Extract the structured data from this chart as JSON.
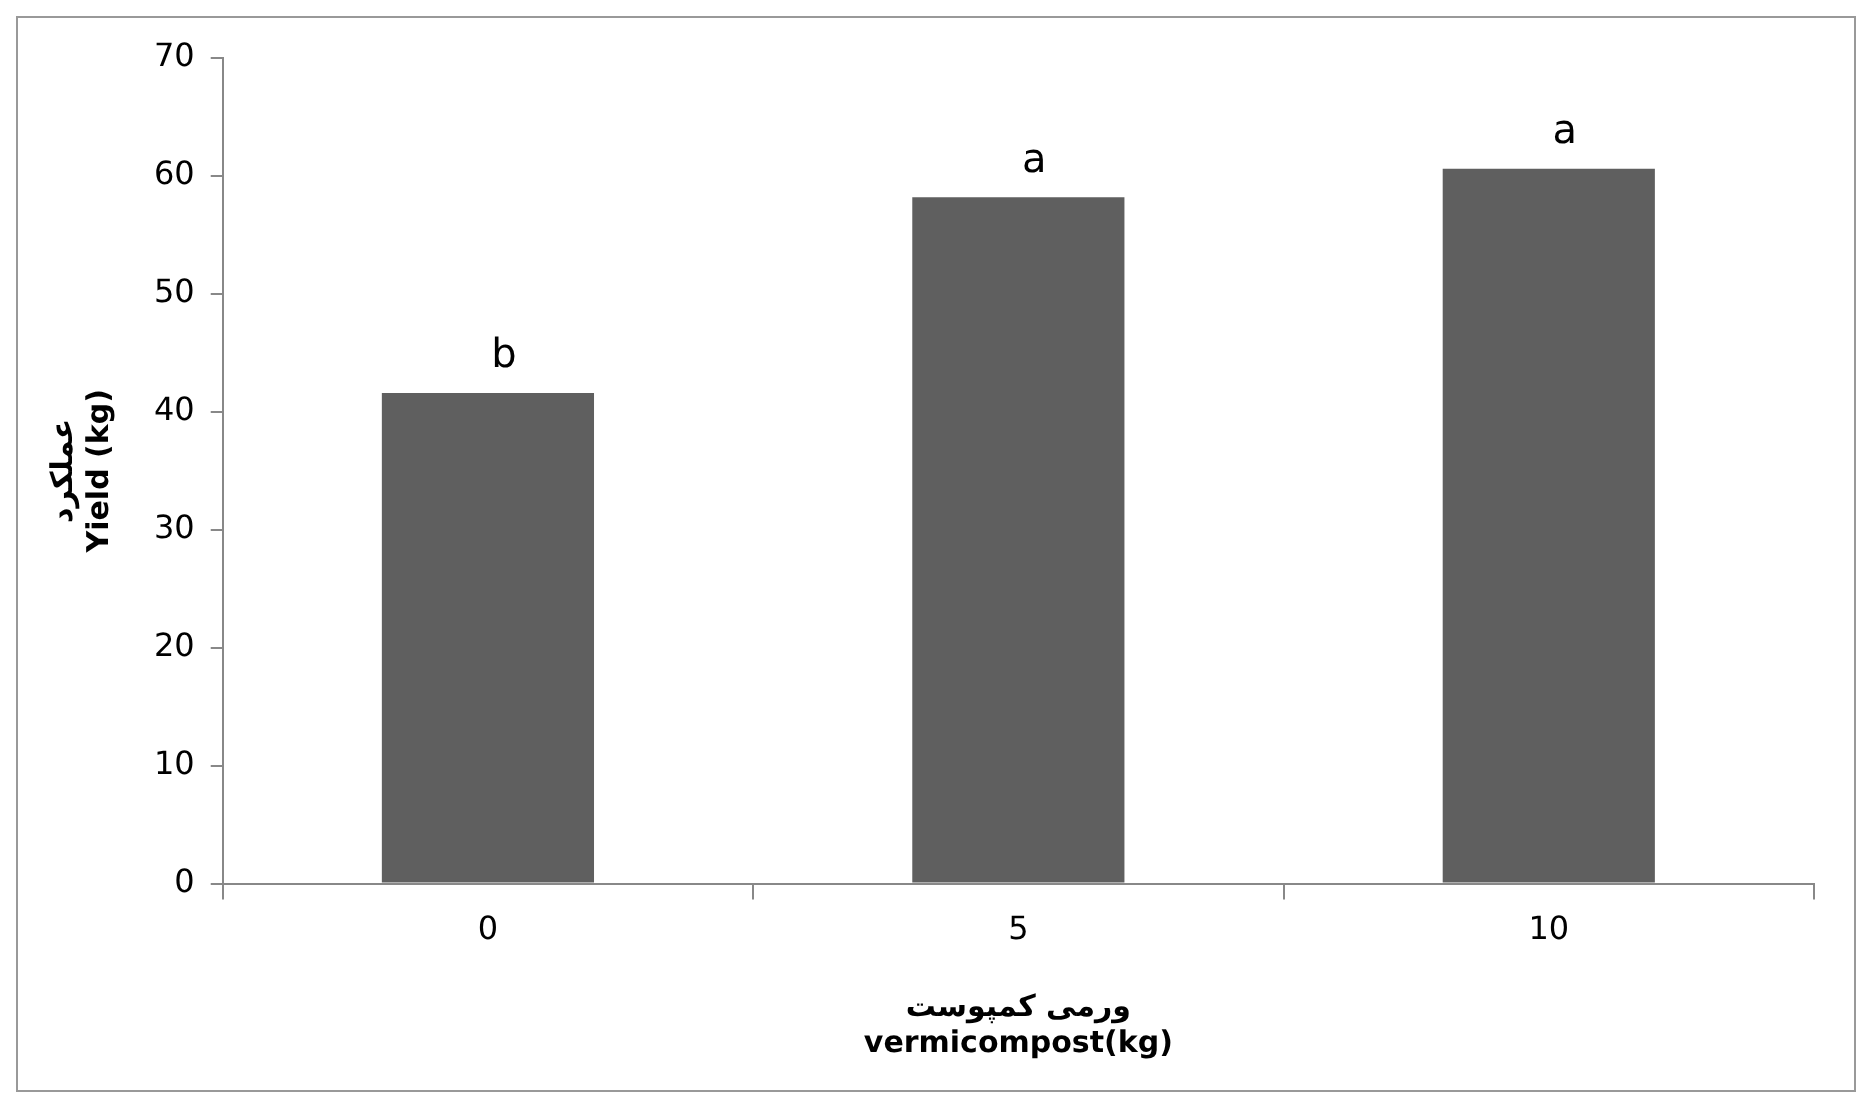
{
  "chart_data": {
    "type": "bar",
    "xlabel": "ورمی کمپوست\nvermicompost(kg)",
    "ylabel": "عملکرد\nYield (kg)",
    "categories": [
      "0",
      "5",
      "10"
    ],
    "values": [
      41.6,
      58.2,
      60.6
    ],
    "color": "#5f5f5f",
    "ylim": [
      0,
      70
    ],
    "yticks": [
      0,
      10,
      20,
      30,
      40,
      50,
      60,
      70
    ],
    "grid": false,
    "legend": false,
    "annotations": [
      {
        "text": "b",
        "x": "0",
        "y": 41.6
      },
      {
        "text": "a",
        "x": "5",
        "y": 58.2
      },
      {
        "text": "a",
        "x": "10",
        "y": 60.6
      }
    ]
  }
}
